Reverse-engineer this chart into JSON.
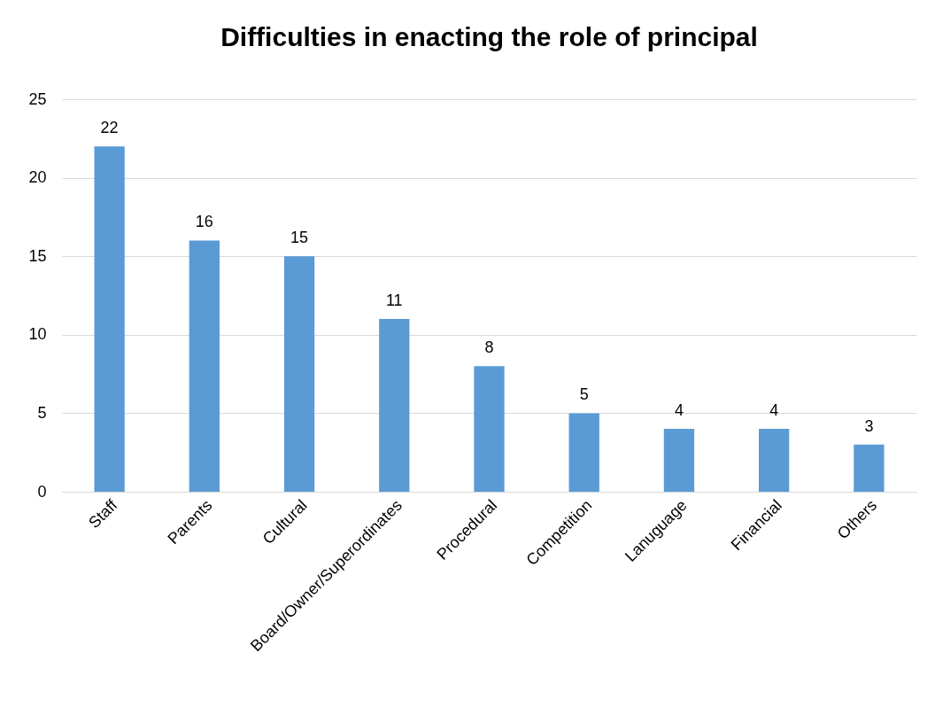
{
  "chart_data": {
    "type": "bar",
    "title": "Difficulties in enacting the role of principal",
    "categories": [
      "Staff",
      "Parents",
      "Cultural",
      "Board/Owner/Superordinates",
      "Procedural",
      "Competition",
      "Lanuguage",
      "Financial",
      "Others"
    ],
    "values": [
      22,
      16,
      15,
      11,
      8,
      5,
      4,
      4,
      3
    ],
    "color": "#5b9bd5",
    "ylim": [
      0,
      25
    ],
    "yticks": [
      0,
      5,
      10,
      15,
      20,
      25
    ],
    "grid": "y",
    "data_labels": true
  }
}
